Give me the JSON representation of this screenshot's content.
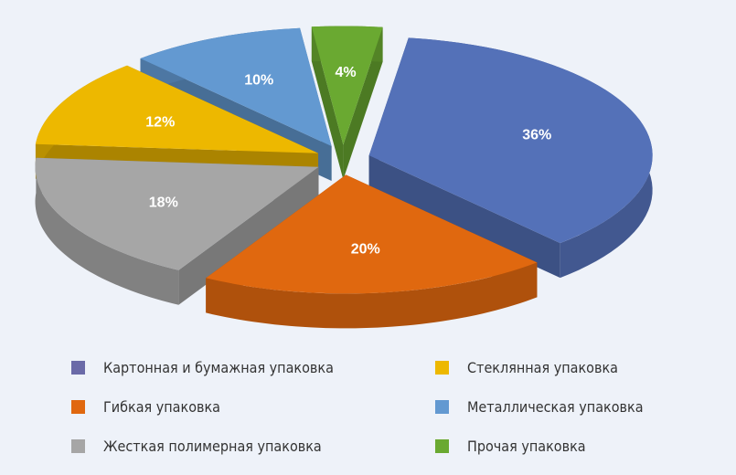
{
  "chart_data": {
    "type": "pie",
    "style": "3d-exploded",
    "slices": [
      {
        "label": "Картонная и бумажная упаковка",
        "value": 36,
        "value_label": "36%",
        "color": "#5471b8"
      },
      {
        "label": "Гибкая упаковка",
        "value": 20,
        "value_label": "20%",
        "color": "#e0680f"
      },
      {
        "label": "Жесткая полимерная упаковка",
        "value": 18,
        "value_label": "18%",
        "color": "#a6a6a6"
      },
      {
        "label": "Стеклянная упаковка",
        "value": 12,
        "value_label": "12%",
        "color": "#edb800"
      },
      {
        "label": "Металлическая упаковка",
        "value": 10,
        "value_label": "10%",
        "color": "#6399d1"
      },
      {
        "label": "Прочая упаковка",
        "value": 4,
        "value_label": "4%",
        "color": "#6aa931"
      }
    ],
    "legend_position": "bottom",
    "legend_columns": 2
  },
  "legend": {
    "items": [
      {
        "label": "Картонная и бумажная упаковка",
        "color": "#6a6aa8"
      },
      {
        "label": "Стеклянная упаковка",
        "color": "#edb800"
      },
      {
        "label": "Гибкая упаковка",
        "color": "#e0680f"
      },
      {
        "label": "Металлическая упаковка",
        "color": "#6399d1"
      },
      {
        "label": "Жесткая полимерная упаковка",
        "color": "#a6a6a6"
      },
      {
        "label": "Прочая упаковка",
        "color": "#6aa931"
      }
    ]
  }
}
